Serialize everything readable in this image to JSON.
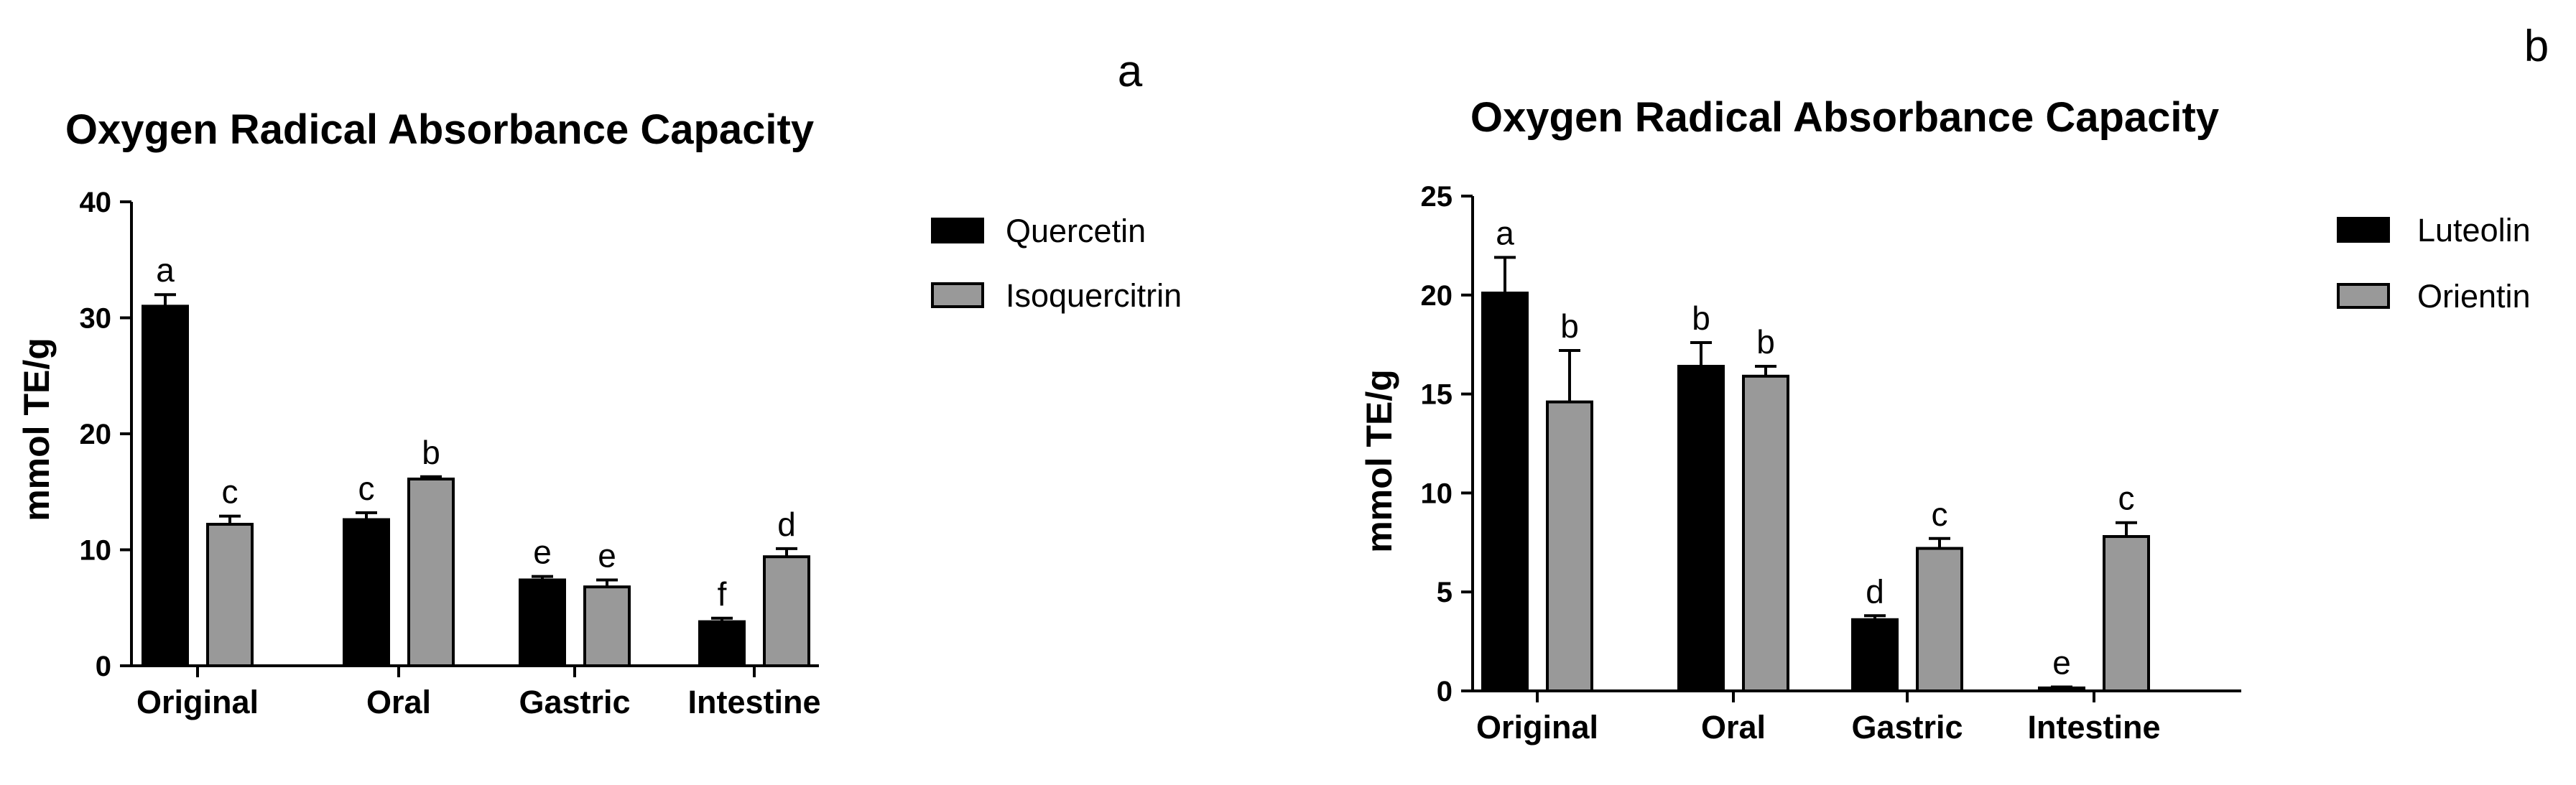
{
  "chart_data": [
    {
      "type": "bar",
      "panel": "a",
      "title": "Oxygen Radical Absorbance Capacity",
      "xlabel": "",
      "ylabel": "mmol TE/g",
      "ylim": [
        0,
        40
      ],
      "yticks": [
        0,
        10,
        20,
        30,
        40
      ],
      "categories": [
        "Original",
        "Oral",
        "Gastric",
        "Intestine"
      ],
      "legend_position": "right",
      "grid": false,
      "series": [
        {
          "name": "Quercetin",
          "color": "#000000",
          "values": [
            31.0,
            12.6,
            7.4,
            3.8
          ],
          "errors": [
            1.0,
            0.6,
            0.3,
            0.3
          ],
          "letters": [
            "a",
            "c",
            "e",
            "f"
          ]
        },
        {
          "name": "Isoquercitrin",
          "color": "#999999",
          "values": [
            12.2,
            16.1,
            6.8,
            9.4
          ],
          "errors": [
            0.7,
            0.2,
            0.6,
            0.7
          ],
          "letters": [
            "c",
            "b",
            "e",
            "d"
          ]
        }
      ]
    },
    {
      "type": "bar",
      "panel": "b",
      "title": "Oxygen Radical Absorbance Capacity",
      "xlabel": "",
      "ylabel": "mmol TE/g",
      "ylim": [
        0,
        25
      ],
      "yticks": [
        0,
        5,
        10,
        15,
        20,
        25
      ],
      "categories": [
        "Original",
        "Oral",
        "Gastric",
        "Intestine"
      ],
      "legend_position": "right",
      "grid": false,
      "series": [
        {
          "name": "Luteolin",
          "color": "#000000",
          "values": [
            20.1,
            16.4,
            3.6,
            0.15
          ],
          "errors": [
            1.8,
            1.2,
            0.2,
            0.05
          ],
          "letters": [
            "a",
            "b",
            "d",
            "e"
          ]
        },
        {
          "name": "Orientin",
          "color": "#999999",
          "values": [
            14.6,
            15.9,
            7.2,
            7.8
          ],
          "errors": [
            2.6,
            0.5,
            0.5,
            0.7
          ],
          "letters": [
            "b",
            "b",
            "c",
            "c"
          ]
        }
      ]
    }
  ]
}
